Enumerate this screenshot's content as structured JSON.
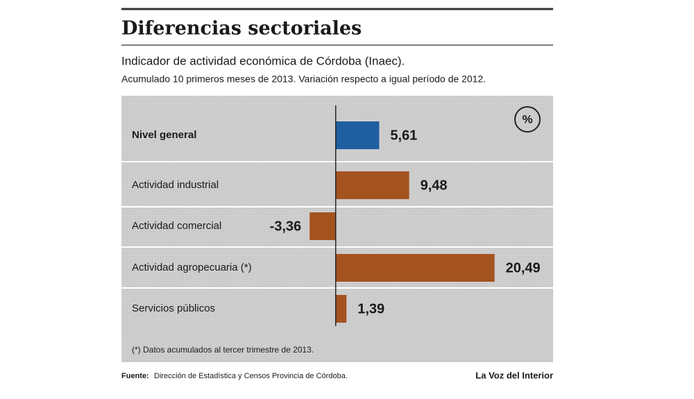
{
  "chart_data": {
    "type": "bar",
    "orientation": "horizontal",
    "title": "Diferencias sectoriales",
    "subtitle": "Indicador de actividad económica de Córdoba (Inaec).",
    "subtitle2": "Acumulado 10 primeros meses de 2013. Variación respecto a igual período de 2012.",
    "unit": "%",
    "categories": [
      "Nivel general",
      "Actividad industrial",
      "Actividad comercial",
      "Actividad agropecuaria (*)",
      "Servicios públicos"
    ],
    "values": [
      5.61,
      9.48,
      -3.36,
      20.49,
      1.39
    ],
    "value_labels": [
      "5,61",
      "9,48",
      "-3,36",
      "20,49",
      "1,39"
    ],
    "colors": [
      "#1f5fa0",
      "#a4531f",
      "#a4531f",
      "#a4531f",
      "#a4531f"
    ],
    "xlim": [
      -10,
      25
    ],
    "note": "(*) Datos acumulados  al tercer trimestre de 2013.",
    "source_label": "Fuente:",
    "source": "Dirección de Estadística y Censos Provincia de Córdoba.",
    "publisher": "La Voz del Interior"
  }
}
